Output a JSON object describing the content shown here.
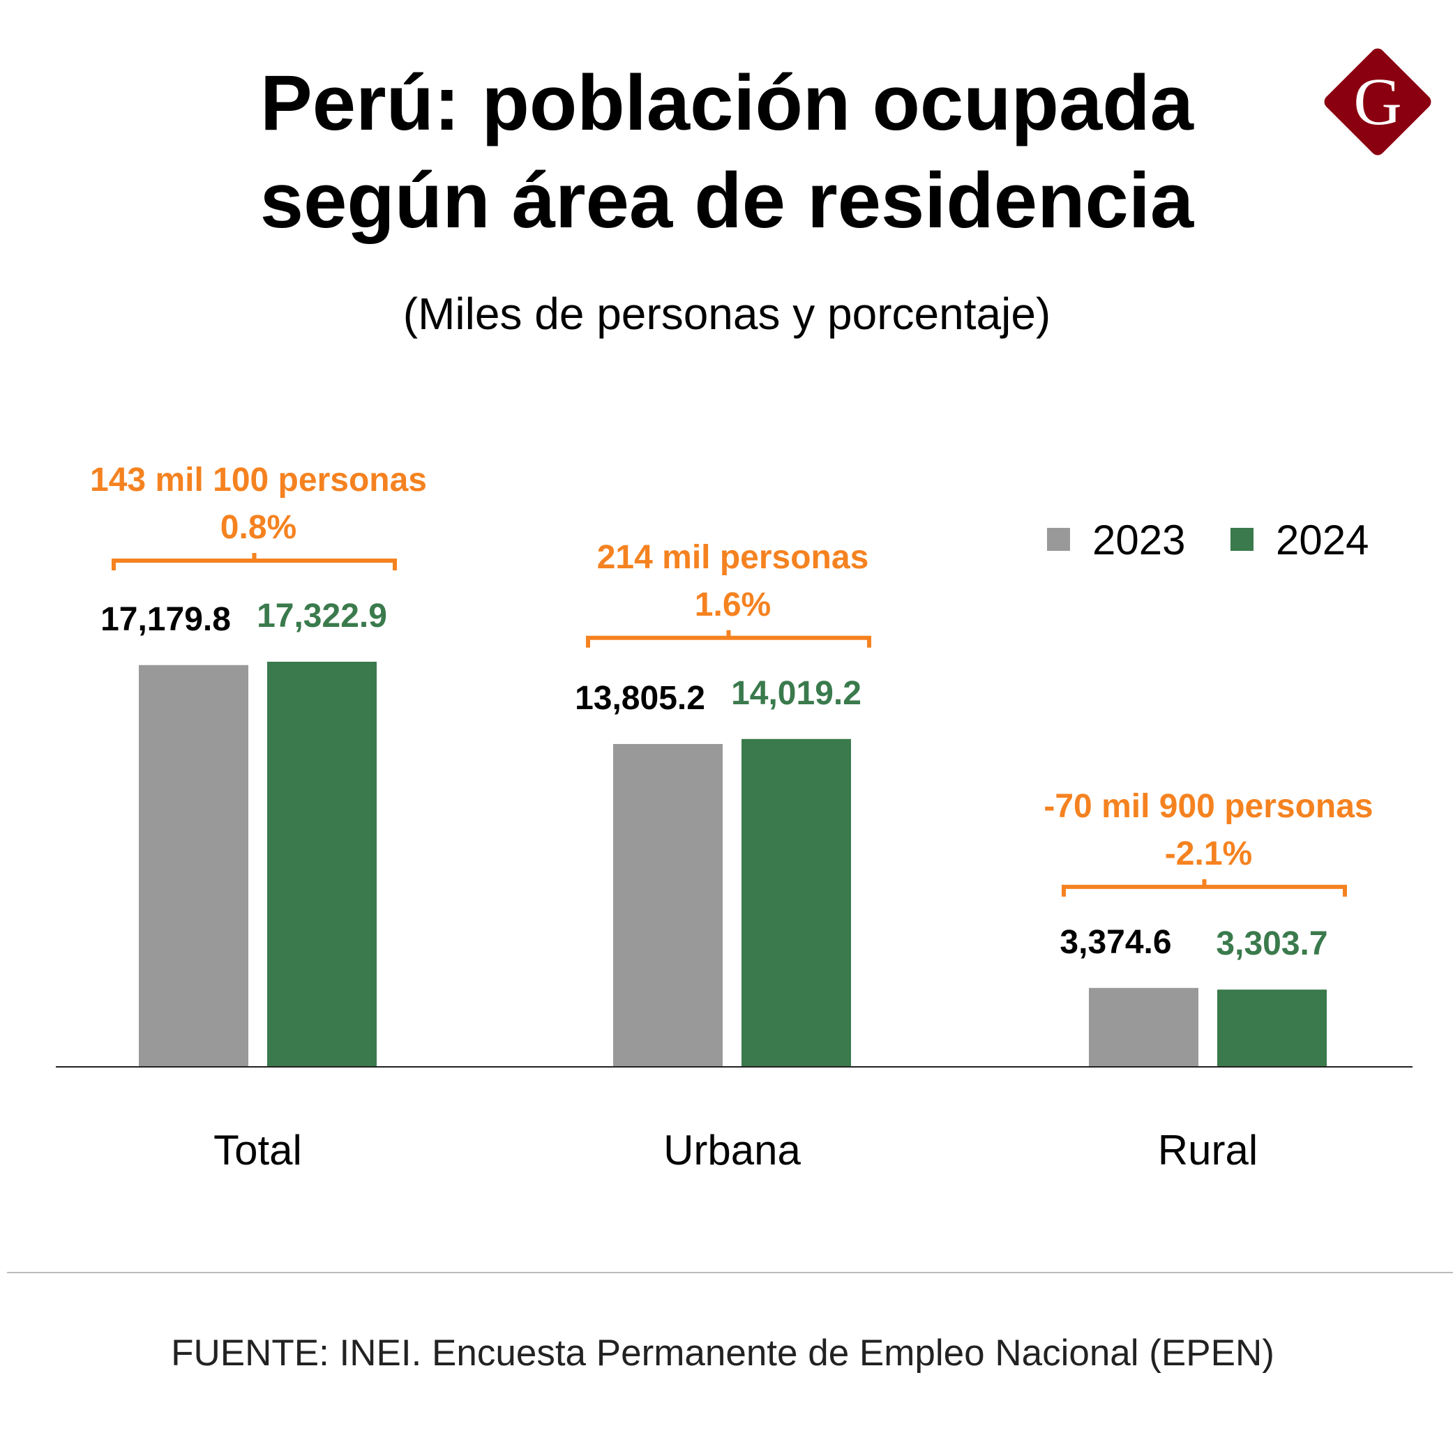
{
  "logo": {
    "letter": "G",
    "color": "#8b0010"
  },
  "chart_data": {
    "type": "bar",
    "title": [
      "Perú: población ocupada",
      "según área de residencia"
    ],
    "subtitle": "(Miles de personas y porcentaje)",
    "categories": [
      "Total",
      "Urbana",
      "Rural"
    ],
    "series": [
      {
        "name": "2023",
        "color": "#999999",
        "values": [
          17179.8,
          13805.2,
          3374.6
        ],
        "labels": [
          "17,179.8",
          "13,805.2",
          "3,374.6"
        ],
        "label_color": "#000000"
      },
      {
        "name": "2024",
        "color": "#3a7a4c",
        "values": [
          17322.9,
          14019.2,
          3303.7
        ],
        "labels": [
          "17,322.9",
          "14,019.2",
          "3,303.7"
        ],
        "label_color": "#3a7a4c"
      }
    ],
    "annotations": [
      {
        "category": "Total",
        "change": "143 mil 100 personas",
        "percent": "0.8%"
      },
      {
        "category": "Urbana",
        "change": "214 mil personas",
        "percent": "1.6%"
      },
      {
        "category": "Rural",
        "change": "-70 mil 900 personas",
        "percent": "-2.1%"
      }
    ],
    "annotation_color": "#f58220",
    "ylim": [
      0,
      17322.9
    ],
    "grid": false,
    "legend_position": "top-right",
    "xlabel": "",
    "ylabel": ""
  },
  "footer": {
    "source": "FUENTE: INEI. Encuesta Permanente de Empleo Nacional (EPEN)"
  }
}
